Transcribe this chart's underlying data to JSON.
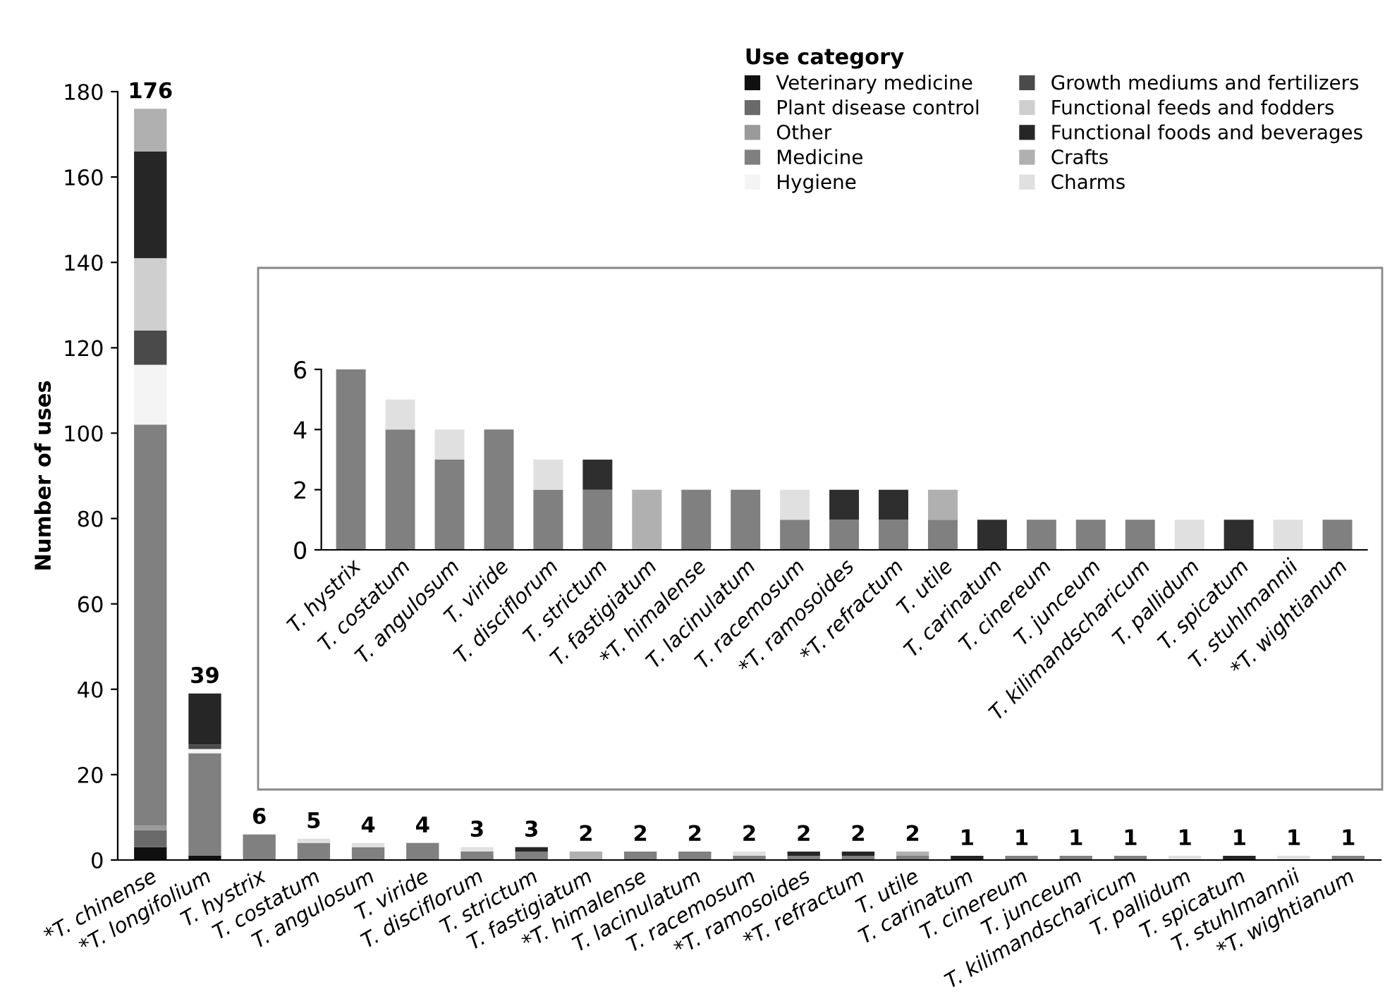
{
  "chart_data": [
    {
      "type": "bar",
      "stacked": true,
      "ylabel": "Number of uses",
      "legend_title": "Use category",
      "legend": "top right",
      "grid": false,
      "categories": [
        "*T. chinense",
        "*T. longifolium",
        "T. hystrix",
        "T. costatum",
        "T. angulosum",
        "T. viride",
        "T. disciflorum",
        "T. strictum",
        "T. fastigiatum",
        "*T. himalense",
        "T. lacinulatum",
        "T. racemosum",
        "*T. ramosoides",
        "*T. refractum",
        "T. utile",
        "T. carinatum",
        "T. cinereum",
        "T. junceum",
        "T. kilimandscharicum",
        "T. pallidum",
        "T. spicatum",
        "T. stuhlmannii",
        "*T. wightianum"
      ],
      "ylim": [
        0,
        180
      ],
      "yticks": [
        0,
        20,
        40,
        60,
        80,
        100,
        120,
        140,
        160,
        180
      ],
      "series": [
        {
          "name": "Veterinary medicine",
          "color": "#101010",
          "values": [
            3,
            1,
            0,
            0,
            0,
            0,
            0,
            0,
            0,
            0,
            0,
            0,
            0,
            0,
            0,
            0,
            0,
            0,
            0,
            0,
            0,
            0,
            0
          ]
        },
        {
          "name": "Plant disease control",
          "color": "#6a6a6a",
          "values": [
            4,
            0,
            0,
            0,
            0,
            0,
            0,
            0,
            0,
            0,
            0,
            0,
            0,
            0,
            0,
            0,
            0,
            0,
            0,
            0,
            0,
            0,
            0
          ]
        },
        {
          "name": "Other",
          "color": "#9a9a9a",
          "values": [
            1,
            0,
            0,
            0,
            0,
            0,
            0,
            0,
            0,
            0,
            0,
            0,
            0,
            0,
            0,
            0,
            0,
            0,
            0,
            0,
            0,
            0,
            0
          ]
        },
        {
          "name": "Medicine",
          "color": "#808080",
          "values": [
            94,
            24,
            6,
            4,
            3,
            4,
            2,
            2,
            0,
            2,
            2,
            1,
            1,
            1,
            1,
            0,
            1,
            1,
            1,
            0,
            0,
            0,
            1
          ]
        },
        {
          "name": "Hygiene",
          "color": "#f4f4f4",
          "values": [
            14,
            1,
            0,
            0,
            0,
            0,
            0,
            0,
            0,
            0,
            0,
            0,
            0,
            0,
            0,
            0,
            0,
            0,
            0,
            0,
            0,
            0,
            0
          ]
        },
        {
          "name": "Growth mediums and fertilizers",
          "color": "#4a4a4a",
          "values": [
            8,
            1,
            0,
            0,
            0,
            0,
            0,
            0,
            0,
            0,
            0,
            0,
            0,
            0,
            0,
            0,
            0,
            0,
            0,
            0,
            0,
            0,
            0
          ]
        },
        {
          "name": "Functional feeds and fodders",
          "color": "#cfcfcf",
          "values": [
            17,
            0,
            0,
            0,
            0,
            0,
            0,
            0,
            0,
            0,
            0,
            0,
            0,
            0,
            0,
            0,
            0,
            0,
            0,
            0,
            0,
            0,
            0
          ]
        },
        {
          "name": "Functional foods and beverages",
          "color": "#262626",
          "values": [
            25,
            12,
            0,
            0,
            0,
            0,
            0,
            1,
            0,
            0,
            0,
            0,
            1,
            1,
            0,
            1,
            0,
            0,
            0,
            0,
            1,
            0,
            0
          ]
        },
        {
          "name": "Crafts",
          "color": "#b0b0b0",
          "values": [
            10,
            0,
            0,
            0,
            0,
            0,
            0,
            0,
            2,
            0,
            0,
            0,
            0,
            0,
            1,
            0,
            0,
            0,
            0,
            0,
            0,
            0,
            0
          ]
        },
        {
          "name": "Charms",
          "color": "#e0e0e0",
          "values": [
            0,
            0,
            0,
            1,
            1,
            0,
            1,
            0,
            0,
            0,
            0,
            1,
            0,
            0,
            0,
            0,
            0,
            0,
            0,
            1,
            0,
            1,
            0
          ]
        }
      ],
      "totals": [
        "176",
        "39",
        "6",
        "5",
        "4",
        "4",
        "3",
        "3",
        "2",
        "2",
        "2",
        "2",
        "2",
        "2",
        "2",
        "1",
        "1",
        "1",
        "1",
        "1",
        "1",
        "1",
        "1"
      ]
    },
    {
      "type": "bar",
      "stacked": true,
      "grid": false,
      "categories": [
        "T. hystrix",
        "T. costatum",
        "T. angulosum",
        "T. viride",
        "T. disciflorum",
        "T. strictum",
        "T. fastigiatum",
        "*T. himalense",
        "T. lacinulatum",
        "T. racemosum",
        "*T. ramosoides",
        "*T. refractum",
        "T. utile",
        "T. carinatum",
        "T. cinereum",
        "T. junceum",
        "T. kilimandscharicum",
        "T. pallidum",
        "T. spicatum",
        "T. stuhlmannii",
        "*T. wightianum"
      ],
      "ylim": [
        0,
        6
      ],
      "yticks": [
        0,
        2,
        4,
        6
      ],
      "series": [
        {
          "color": "#808080",
          "values": [
            6,
            4,
            3,
            4,
            2,
            2,
            0,
            2,
            2,
            1,
            1,
            1,
            1,
            0,
            1,
            1,
            1,
            0,
            0,
            0,
            1
          ]
        },
        {
          "color": "#2e2e2e",
          "values": [
            0,
            0,
            0,
            0,
            0,
            1,
            0,
            0,
            0,
            0,
            1,
            1,
            0,
            1,
            0,
            0,
            0,
            0,
            1,
            0,
            0
          ]
        },
        {
          "color": "#b0b0b0",
          "values": [
            0,
            0,
            0,
            0,
            0,
            0,
            2,
            0,
            0,
            0,
            0,
            0,
            1,
            0,
            0,
            0,
            0,
            0,
            0,
            0,
            0
          ]
        },
        {
          "color": "#e0e0e0",
          "values": [
            0,
            1,
            1,
            0,
            1,
            0,
            0,
            0,
            0,
            1,
            0,
            0,
            0,
            0,
            0,
            0,
            0,
            1,
            0,
            1,
            0
          ]
        }
      ]
    }
  ]
}
